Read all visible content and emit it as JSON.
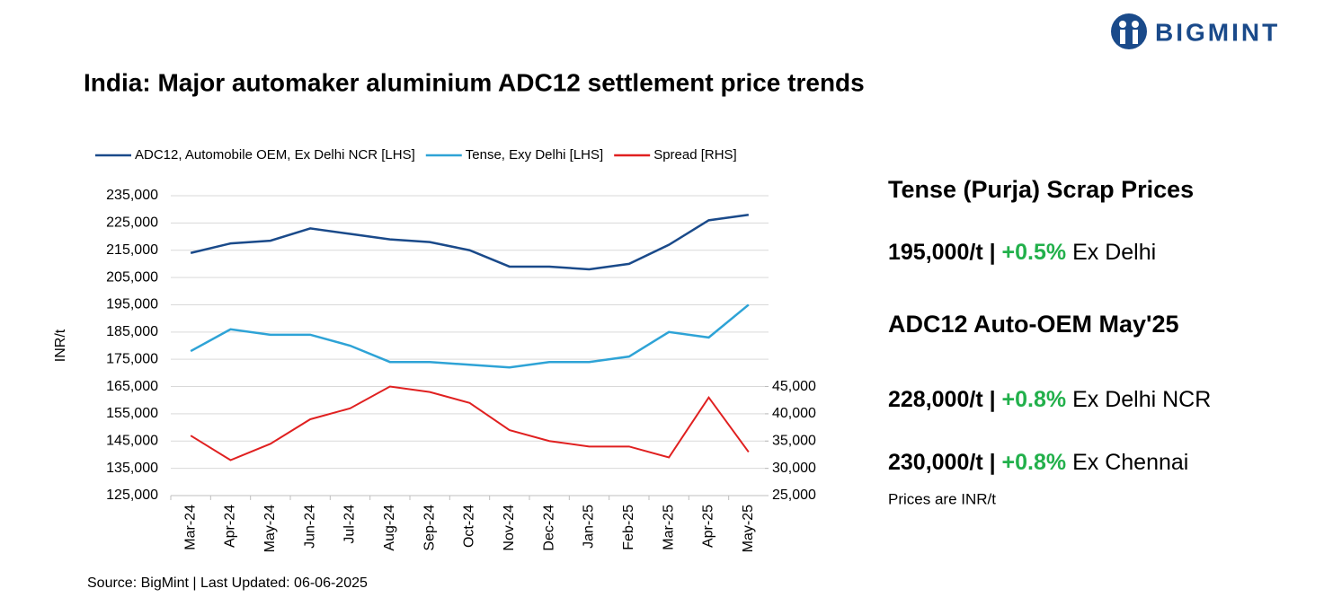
{
  "logo": "BIGMINT",
  "chart_data": {
    "type": "line",
    "title": "India: Major automaker aluminium ADC12 settlement price trends",
    "ylabel": "INR/t",
    "source": "Source: BigMint | Last Updated: 06-06-2025",
    "categories": [
      "Mar-24",
      "Apr-24",
      "May-24",
      "Jun-24",
      "Jul-24",
      "Aug-24",
      "Sep-24",
      "Oct-24",
      "Nov-24",
      "Dec-24",
      "Jan-25",
      "Feb-25",
      "Mar-25",
      "Apr-25",
      "May-25"
    ],
    "ylim": [
      125000,
      235000
    ],
    "yticks": [
      {
        "value": 125000,
        "label": "125,000"
      },
      {
        "value": 135000,
        "label": "135,000"
      },
      {
        "value": 145000,
        "label": "145,000"
      },
      {
        "value": 155000,
        "label": "155,000"
      },
      {
        "value": 165000,
        "label": "165,000"
      },
      {
        "value": 175000,
        "label": "175,000"
      },
      {
        "value": 185000,
        "label": "185,000"
      },
      {
        "value": 195000,
        "label": "195,000"
      },
      {
        "value": 205000,
        "label": "205,000"
      },
      {
        "value": 215000,
        "label": "215,000"
      },
      {
        "value": 225000,
        "label": "225,000"
      },
      {
        "value": 235000,
        "label": "235,000"
      }
    ],
    "y2lim": [
      25000,
      80000
    ],
    "y2ticks": [
      {
        "value": 25000,
        "label": "25,000"
      },
      {
        "value": 30000,
        "label": "30,000"
      },
      {
        "value": 35000,
        "label": "35,000"
      },
      {
        "value": 40000,
        "label": "40,000"
      },
      {
        "value": 45000,
        "label": "45,000"
      }
    ],
    "grid": true,
    "legend": "top",
    "series": [
      {
        "name": "ADC12, Automobile OEM, Ex Delhi NCR [LHS]",
        "color": "#1a4a8a",
        "values": [
          214000,
          217500,
          218500,
          223000,
          221000,
          219000,
          218000,
          215000,
          209000,
          209000,
          208000,
          210000,
          217000,
          226000,
          228000
        ]
      },
      {
        "name": "Tense, Exy Delhi [LHS]",
        "color": "#2ea3d6",
        "values": [
          178000,
          186000,
          184000,
          184000,
          180000,
          174000,
          174000,
          173000,
          172000,
          174000,
          174000,
          176000,
          185000,
          183000,
          195000
        ]
      },
      {
        "name": "Spread [RHS]",
        "color": "#e02020",
        "axis": "y2",
        "values": [
          36000,
          31500,
          34500,
          39000,
          41000,
          45000,
          44000,
          42000,
          37000,
          35000,
          34000,
          34000,
          32000,
          43000,
          33000
        ]
      }
    ]
  },
  "panel": {
    "heading1": "Tense (Purja) Scrap Prices",
    "line1": {
      "price": "195,000/t",
      "sep": "|",
      "change": "+0.5%",
      "location": "Ex Delhi"
    },
    "heading2": "ADC12 Auto-OEM May'25",
    "line2": {
      "price": "228,000/t",
      "sep": "|",
      "change": "+0.8%",
      "location": "Ex Delhi NCR"
    },
    "line3": {
      "price": "230,000/t",
      "sep": "|",
      "change": "+0.8%",
      "location": "Ex Chennai"
    },
    "note": "Prices are INR/t"
  }
}
